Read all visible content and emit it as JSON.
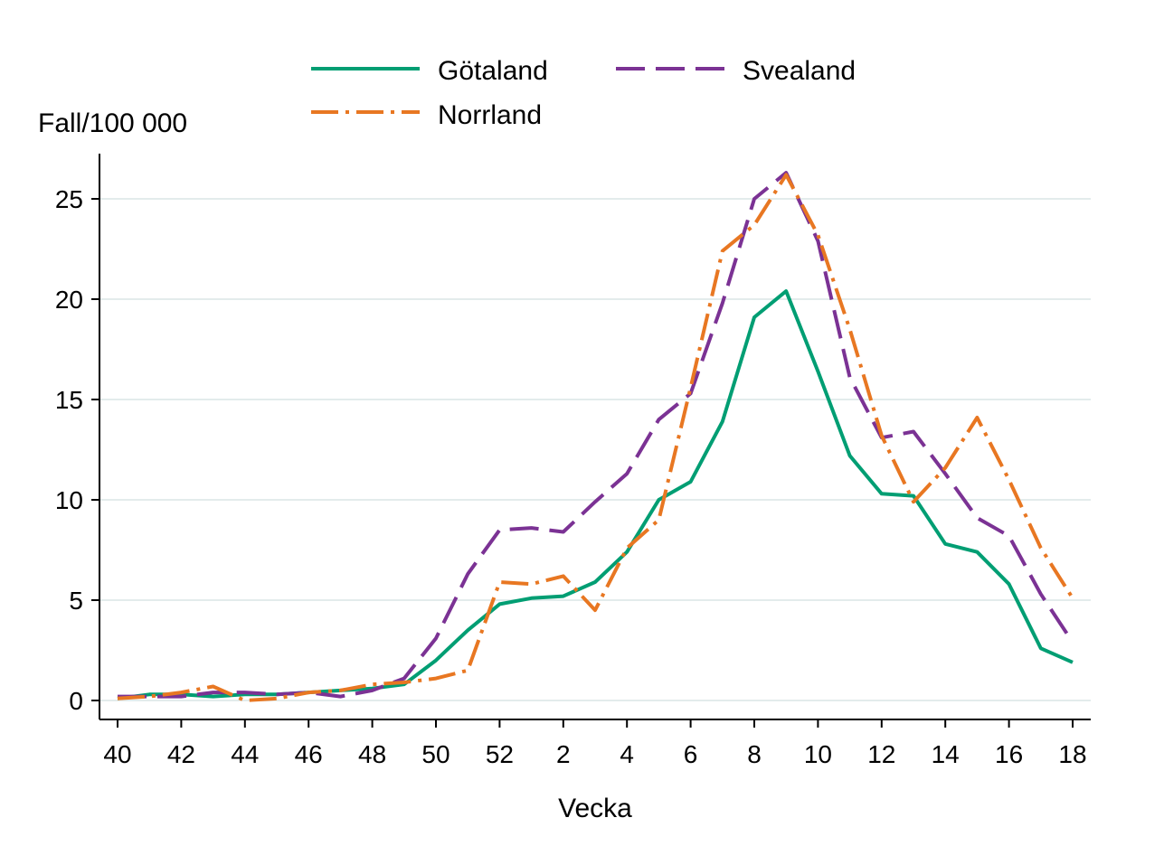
{
  "chart_data": {
    "type": "line",
    "ylabel": "Fall/100 000",
    "xlabel": "Vecka",
    "ylim": [
      0,
      27
    ],
    "yticks": [
      0,
      5,
      10,
      15,
      20,
      25
    ],
    "grid": "horizontal",
    "legend_position": "top",
    "x": [
      "40",
      "41",
      "42",
      "43",
      "44",
      "45",
      "46",
      "47",
      "48",
      "49",
      "50",
      "51",
      "52",
      "1",
      "2",
      "3",
      "4",
      "5",
      "6",
      "7",
      "8",
      "9",
      "10",
      "11",
      "12",
      "13",
      "14",
      "15",
      "16",
      "17",
      "18"
    ],
    "xtick_labels": [
      "40",
      "42",
      "44",
      "46",
      "48",
      "50",
      "52",
      "2",
      "4",
      "6",
      "8",
      "10",
      "12",
      "14",
      "16",
      "18"
    ],
    "series": [
      {
        "name": "Götaland",
        "color": "#009E73",
        "dash": "solid",
        "values": [
          0.1,
          0.3,
          0.3,
          0.2,
          0.3,
          0.3,
          0.4,
          0.5,
          0.6,
          0.8,
          2.0,
          3.5,
          4.8,
          5.1,
          5.2,
          5.9,
          7.4,
          10.0,
          10.9,
          13.9,
          19.1,
          20.4,
          16.4,
          12.2,
          10.3,
          10.2,
          7.8,
          7.4,
          5.8,
          2.6,
          1.9
        ]
      },
      {
        "name": "Svealand",
        "color": "#7B3294",
        "dash": "long-dash",
        "values": [
          0.2,
          0.2,
          0.2,
          0.4,
          0.4,
          0.3,
          0.4,
          0.2,
          0.5,
          1.1,
          3.1,
          6.3,
          8.5,
          8.6,
          8.4,
          9.9,
          11.3,
          14.0,
          15.3,
          19.8,
          25.0,
          26.3,
          22.9,
          16.1,
          13.1,
          13.4,
          11.3,
          9.1,
          8.2,
          5.3,
          2.9
        ]
      },
      {
        "name": "Norrland",
        "color": "#E87722",
        "dash": "dash-dot",
        "values": [
          0.1,
          0.2,
          0.4,
          0.7,
          0.0,
          0.1,
          0.4,
          0.5,
          0.8,
          0.9,
          1.1,
          1.5,
          5.9,
          5.8,
          6.2,
          4.5,
          7.6,
          9.0,
          15.6,
          22.4,
          23.7,
          26.2,
          23.2,
          18.5,
          13.2,
          9.9,
          11.6,
          14.1,
          11.0,
          7.6,
          5.1
        ]
      }
    ]
  }
}
